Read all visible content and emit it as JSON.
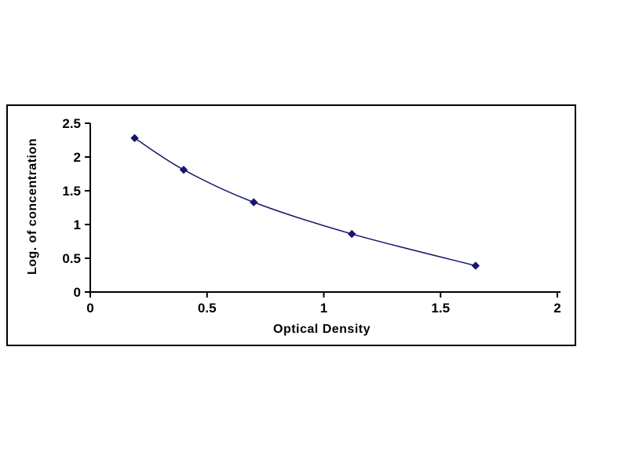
{
  "page": {
    "background": "#ffffff"
  },
  "chart_data": {
    "type": "line",
    "title": "",
    "xlabel": "Optical Density",
    "ylabel": "Log. of concentration",
    "x": [
      0.19,
      0.4,
      0.7,
      1.12,
      1.65
    ],
    "y": [
      2.28,
      1.81,
      1.33,
      0.86,
      0.39
    ],
    "xlim": [
      0,
      2
    ],
    "ylim": [
      0,
      2.5
    ],
    "x_ticks": [
      0,
      0.5,
      1,
      1.5,
      2
    ],
    "y_ticks": [
      0,
      0.5,
      1,
      1.5,
      2,
      2.5
    ],
    "x_tick_labels": [
      "0",
      "0.5",
      "1",
      "1.5",
      "2"
    ],
    "y_tick_labels": [
      "0",
      "0.5",
      "1",
      "1.5",
      "2",
      "2.5"
    ],
    "grid": false,
    "legend": "none",
    "marker": "diamond",
    "line_color": "#16166b",
    "marker_color": "#16166b",
    "axis_color": "#000000",
    "tick_font_size": 17,
    "frame_border_color": "#000000"
  }
}
